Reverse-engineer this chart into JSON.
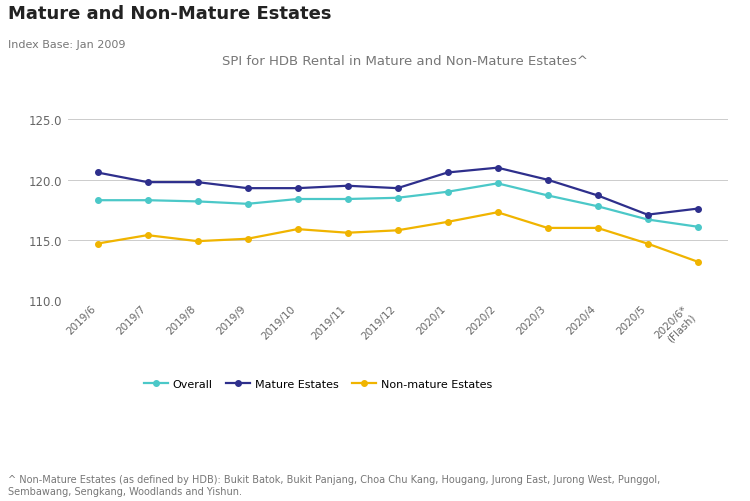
{
  "title": "Mature and Non-Mature Estates",
  "index_base": "Index Base: Jan 2009",
  "subtitle": "SPI for HDB Rental in Mature and Non-Mature Estates^",
  "footnote": "^ Non-Mature Estates (as defined by HDB): Bukit Batok, Bukit Panjang, Choa Chu Kang, Hougang, Jurong East, Jurong West, Punggol,\nSembawang, Sengkang, Woodlands and Yishun.",
  "x_labels": [
    "2019/6",
    "2019/7",
    "2019/8",
    "2019/9",
    "2019/10",
    "2019/11",
    "2019/12",
    "2020/1",
    "2020/2",
    "2020/3",
    "2020/4",
    "2020/5",
    "2020/6*\n(Flash)"
  ],
  "overall": [
    118.3,
    118.3,
    118.2,
    118.0,
    118.4,
    118.4,
    118.5,
    119.0,
    119.7,
    118.7,
    117.8,
    116.7,
    116.1
  ],
  "mature": [
    120.6,
    119.8,
    119.8,
    119.3,
    119.3,
    119.5,
    119.3,
    120.6,
    121.0,
    120.0,
    118.7,
    117.1,
    117.6
  ],
  "non_mature": [
    114.7,
    115.4,
    114.9,
    115.1,
    115.9,
    115.6,
    115.8,
    116.5,
    117.3,
    116.0,
    116.0,
    114.7,
    113.2
  ],
  "overall_color": "#4BC8C8",
  "mature_color": "#2E2F8C",
  "non_mature_color": "#F0B400",
  "background_color": "#FFFFFF",
  "ylim": [
    110.0,
    125.0
  ],
  "yticks": [
    110.0,
    115.0,
    120.0,
    125.0
  ],
  "grid_color": "#CCCCCC",
  "legend_labels": [
    "Overall",
    "Mature Estates",
    "Non-mature Estates"
  ]
}
